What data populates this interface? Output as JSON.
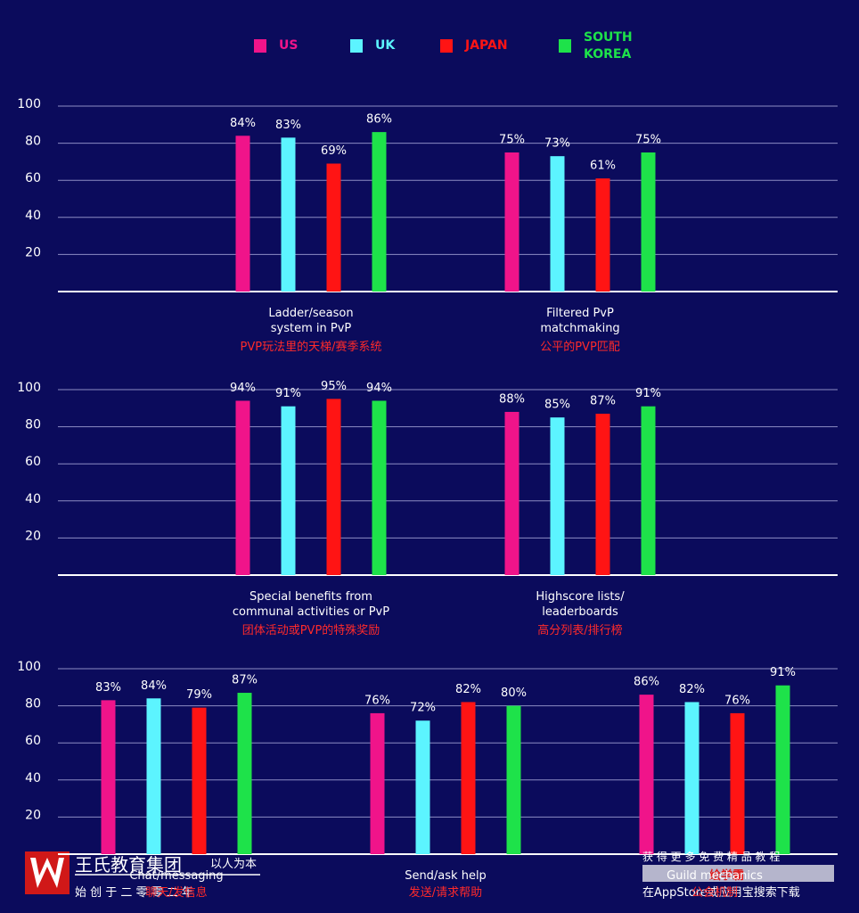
{
  "chart_data": {
    "type": "bar",
    "ylim": [
      0,
      100
    ],
    "yticks": [
      20,
      40,
      60,
      80,
      100
    ],
    "grid": true,
    "series": [
      {
        "name": "US",
        "color": "#f0148a"
      },
      {
        "name": "UK",
        "color": "#5cf4ff"
      },
      {
        "name": "JAPAN",
        "color": "#ff1414"
      },
      {
        "name": "SOUTH\nKOREA",
        "color": "#1ee24a"
      }
    ],
    "panels": [
      {
        "categories": [
          "Ladder/season\nsystem in PvP",
          "Filtered PvP\nmatchmaking"
        ],
        "categories_zh": [
          "PVP玩法里的天梯/赛季系统",
          "公平的PVP匹配"
        ],
        "values": [
          [
            84,
            83,
            69,
            86
          ],
          [
            75,
            73,
            61,
            75
          ]
        ],
        "value_labels": [
          [
            "84%",
            "83%",
            "69%",
            "86%"
          ],
          [
            "75%",
            "73%",
            "61%",
            "75%"
          ]
        ]
      },
      {
        "categories": [
          "Special benefits from\ncommunal activities or PvP",
          "Highscore lists/\nleaderboards"
        ],
        "categories_zh": [
          "团体活动或PVP的特殊奖励",
          "高分列表/排行榜"
        ],
        "values": [
          [
            94,
            91,
            95,
            94
          ],
          [
            88,
            85,
            87,
            91
          ]
        ],
        "value_labels": [
          [
            "94%",
            "91%",
            "95%",
            "94%"
          ],
          [
            "88%",
            "85%",
            "87%",
            "91%"
          ]
        ]
      },
      {
        "categories": [
          "Chat/messaging",
          "Send/ask help",
          "Guild mechanics"
        ],
        "categories_zh": [
          "聊天/发信息",
          "发送/请求帮助",
          "公会机制"
        ],
        "values": [
          [
            83,
            84,
            79,
            87
          ],
          [
            76,
            72,
            82,
            80
          ],
          [
            86,
            82,
            76,
            91
          ]
        ],
        "value_labels": [
          [
            "83%",
            "84%",
            "79%",
            "87%"
          ],
          [
            "76%",
            "72%",
            "82%",
            "80%"
          ],
          [
            "86%",
            "82%",
            "76%",
            "91%"
          ]
        ]
      }
    ]
  },
  "watermark": {
    "left_title": "王氏教育集团",
    "left_slogan": "以人为本",
    "left_sub": "始 创 于 二 零 零 二 年",
    "right_top": "获 得 更 多 免 费 精 品 教 程",
    "right_brand": "绘学霸",
    "right_bottom": "在AppStore或应用宝搜索下载"
  }
}
